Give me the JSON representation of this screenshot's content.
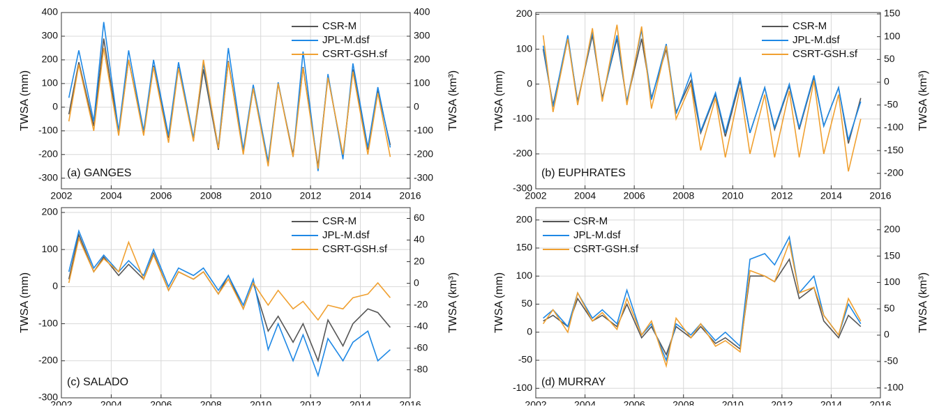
{
  "chart_data": [
    {
      "type": "line",
      "panel_label": "(a) GANGES",
      "ylabel": "TWSA (mm)",
      "y2label": "TWSA (km³)",
      "legend": "upper right",
      "grid": true,
      "x": [
        2002.3,
        2002.7,
        2003.3,
        2003.7,
        2004.3,
        2004.7,
        2005.3,
        2005.7,
        2006.3,
        2006.7,
        2007.3,
        2007.7,
        2008.3,
        2008.7,
        2009.3,
        2009.7,
        2010.3,
        2010.7,
        2011.3,
        2011.7,
        2012.3,
        2012.7,
        2013.3,
        2013.7,
        2014.3,
        2014.7,
        2015.2
      ],
      "xlim": [
        2002,
        2016
      ],
      "xticks": [
        2002,
        2004,
        2006,
        2008,
        2010,
        2012,
        2014,
        2016
      ],
      "ylim": [
        -345,
        400
      ],
      "yticks": [
        -300,
        -200,
        -100,
        0,
        100,
        200,
        300,
        400
      ],
      "y2lim": [
        -345,
        400
      ],
      "y2ticks": [
        -300,
        -200,
        -100,
        0,
        100,
        200,
        300,
        400
      ],
      "series": [
        {
          "name": "CSR-M",
          "color": "#555555",
          "values": [
            -30,
            190,
            -80,
            290,
            -110,
            200,
            -110,
            175,
            -130,
            170,
            -140,
            160,
            -180,
            195,
            -190,
            80,
            -240,
            100,
            -200,
            170,
            -250,
            130,
            -210,
            160,
            -180,
            70,
            -160
          ]
        },
        {
          "name": "JPL-M.dsf",
          "color": "#1e88e5",
          "values": [
            40,
            240,
            -60,
            360,
            -100,
            240,
            -100,
            200,
            -120,
            190,
            -130,
            185,
            -170,
            250,
            -180,
            95,
            -230,
            105,
            -210,
            235,
            -270,
            140,
            -220,
            185,
            -170,
            85,
            -170
          ]
        },
        {
          "name": "CSRT-GSH.sf",
          "color": "#f0a030",
          "values": [
            -60,
            180,
            -100,
            250,
            -120,
            200,
            -120,
            170,
            -150,
            165,
            -145,
            200,
            -175,
            190,
            -200,
            80,
            -250,
            100,
            -210,
            165,
            -260,
            125,
            -200,
            150,
            -200,
            60,
            -210
          ]
        }
      ]
    },
    {
      "type": "line",
      "panel_label": "(b) EUPHRATES",
      "ylabel": "TWSA (mm)",
      "y2label": "TWSA (km³)",
      "legend": "upper right",
      "grid": true,
      "x": [
        2002.3,
        2002.7,
        2003.3,
        2003.7,
        2004.3,
        2004.7,
        2005.3,
        2005.7,
        2006.3,
        2006.7,
        2007.3,
        2007.7,
        2008.3,
        2008.7,
        2009.3,
        2009.7,
        2010.3,
        2010.7,
        2011.3,
        2011.7,
        2012.3,
        2012.7,
        2013.3,
        2013.7,
        2014.3,
        2014.7,
        2015.2
      ],
      "xlim": [
        2002,
        2016
      ],
      "xticks": [
        2002,
        2004,
        2006,
        2008,
        2010,
        2012,
        2014,
        2016
      ],
      "ylim": [
        -300,
        205
      ],
      "yticks": [
        -300,
        -200,
        -100,
        0,
        100,
        200
      ],
      "y2lim": [
        -234,
        153
      ],
      "y2ticks": [
        -200,
        -150,
        -100,
        -50,
        0,
        50,
        100,
        150
      ],
      "series": [
        {
          "name": "CSR-M",
          "color": "#555555",
          "values": [
            100,
            -60,
            130,
            -50,
            140,
            -40,
            130,
            -50,
            130,
            -40,
            100,
            -80,
            10,
            -140,
            -30,
            -150,
            10,
            -140,
            -10,
            -130,
            -5,
            -130,
            20,
            -120,
            -10,
            -170,
            -40
          ]
        },
        {
          "name": "JPL-M.dsf",
          "color": "#1e88e5",
          "values": [
            110,
            -65,
            140,
            -55,
            150,
            -45,
            140,
            -50,
            155,
            -45,
            115,
            -85,
            30,
            -135,
            -25,
            -140,
            20,
            -140,
            -10,
            -125,
            0,
            -125,
            25,
            -120,
            -10,
            -160,
            -50
          ]
        },
        {
          "name": "CSRT-GSH.sf",
          "color": "#f0a030",
          "values": [
            140,
            -80,
            130,
            -60,
            160,
            -50,
            170,
            -60,
            165,
            -70,
            110,
            -100,
            0,
            -190,
            -40,
            -210,
            -10,
            -200,
            -30,
            -210,
            -20,
            -210,
            10,
            -200,
            -30,
            -250,
            -100
          ]
        }
      ]
    },
    {
      "type": "line",
      "panel_label": "(c) SALADO",
      "ylabel": "TWSA (mm)",
      "y2label": "TWSA (km³)",
      "legend": "upper right",
      "grid": true,
      "x": [
        2002.3,
        2002.7,
        2003.3,
        2003.7,
        2004.3,
        2004.7,
        2005.3,
        2005.7,
        2006.3,
        2006.7,
        2007.3,
        2007.7,
        2008.3,
        2008.7,
        2009.3,
        2009.7,
        2010.3,
        2010.7,
        2011.3,
        2011.7,
        2012.3,
        2012.7,
        2013.3,
        2013.7,
        2014.3,
        2014.7,
        2015.2
      ],
      "xlim": [
        2002,
        2016
      ],
      "xticks": [
        2002,
        2004,
        2006,
        2008,
        2010,
        2012,
        2014,
        2016
      ],
      "ylim": [
        -300,
        213
      ],
      "yticks": [
        -300,
        -200,
        -100,
        0,
        100,
        200
      ],
      "y2lim": [
        -106,
        70
      ],
      "y2ticks": [
        -80,
        -60,
        -40,
        -20,
        0,
        20,
        40,
        60
      ],
      "series": [
        {
          "name": "CSR-M",
          "color": "#555555",
          "values": [
            20,
            140,
            40,
            80,
            30,
            60,
            20,
            90,
            -10,
            40,
            20,
            40,
            -20,
            30,
            -60,
            10,
            -120,
            -80,
            -150,
            -100,
            -200,
            -90,
            -160,
            -100,
            -60,
            -70,
            -110
          ]
        },
        {
          "name": "JPL-M.dsf",
          "color": "#1e88e5",
          "values": [
            40,
            150,
            50,
            85,
            40,
            70,
            30,
            100,
            0,
            50,
            30,
            50,
            -10,
            30,
            -50,
            20,
            -170,
            -100,
            -200,
            -130,
            -240,
            -140,
            -200,
            -150,
            -120,
            -200,
            -170
          ]
        },
        {
          "name": "CSRT-GSH.sf",
          "color": "#f0a030",
          "values": [
            10,
            130,
            40,
            75,
            40,
            120,
            20,
            85,
            -10,
            40,
            20,
            40,
            -20,
            20,
            -60,
            10,
            -50,
            -10,
            -60,
            -40,
            -90,
            -50,
            -60,
            -30,
            -20,
            10,
            -30
          ]
        }
      ]
    },
    {
      "type": "line",
      "panel_label": "(d) MURRAY",
      "ylabel": "TWSA (mm)",
      "y2label": "TWSA (km³)",
      "legend": "upper left",
      "grid": true,
      "x": [
        2002.3,
        2002.7,
        2003.3,
        2003.7,
        2004.3,
        2004.7,
        2005.3,
        2005.7,
        2006.3,
        2006.7,
        2007.3,
        2007.7,
        2008.3,
        2008.7,
        2009.3,
        2009.7,
        2010.3,
        2010.7,
        2011.3,
        2011.7,
        2012.3,
        2012.7,
        2013.3,
        2013.7,
        2014.3,
        2014.7,
        2015.2
      ],
      "xlim": [
        2002,
        2016
      ],
      "xticks": [
        2002,
        2004,
        2006,
        2008,
        2010,
        2012,
        2014,
        2016
      ],
      "ylim": [
        -117,
        222
      ],
      "yticks": [
        -100,
        -50,
        0,
        50,
        100,
        150,
        200
      ],
      "y2lim": [
        -119,
        242
      ],
      "y2ticks": [
        -100,
        -50,
        0,
        50,
        100,
        150,
        200
      ],
      "series": [
        {
          "name": "CSR-M",
          "color": "#555555",
          "values": [
            20,
            30,
            10,
            60,
            20,
            30,
            10,
            50,
            -10,
            10,
            -40,
            10,
            -10,
            10,
            -20,
            -10,
            -30,
            100,
            100,
            90,
            130,
            60,
            80,
            20,
            -10,
            30,
            10
          ]
        },
        {
          "name": "JPL-M.dsf",
          "color": "#1e88e5",
          "values": [
            25,
            40,
            10,
            70,
            25,
            40,
            15,
            75,
            -5,
            15,
            -50,
            15,
            -5,
            15,
            -15,
            0,
            -25,
            130,
            140,
            120,
            170,
            70,
            100,
            30,
            -5,
            50,
            15
          ]
        },
        {
          "name": "CSRT-GSH.sf",
          "color": "#f0a030",
          "values": [
            15,
            40,
            0,
            70,
            20,
            35,
            5,
            60,
            -5,
            20,
            -60,
            25,
            -10,
            15,
            -25,
            -15,
            -35,
            110,
            100,
            90,
            160,
            70,
            80,
            30,
            -5,
            60,
            20
          ]
        }
      ]
    }
  ]
}
